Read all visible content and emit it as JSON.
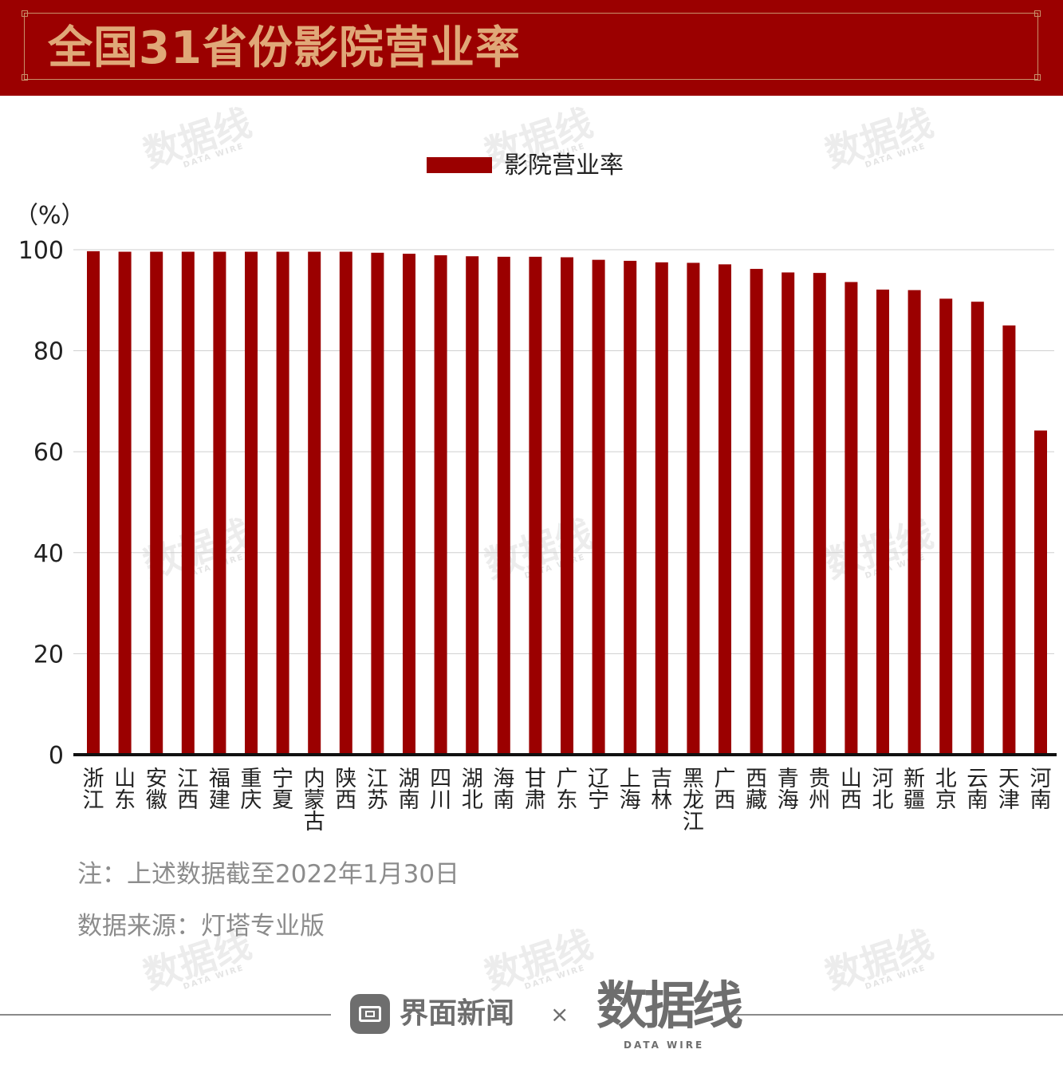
{
  "header": {
    "title": "全国31省份影院营业率"
  },
  "watermark": {
    "text": "数据线",
    "sub": "DATA WIRE"
  },
  "chart_data": {
    "type": "bar",
    "title": "全国31省份影院营业率",
    "ylabel": "（%）",
    "xlabel": "",
    "ylim": [
      0,
      100
    ],
    "yticks": [
      0,
      20,
      40,
      60,
      80,
      100
    ],
    "grid": true,
    "legend_position": "top-center",
    "categories": [
      "浙江",
      "山东",
      "安徽",
      "江西",
      "福建",
      "重庆",
      "宁夏",
      "内蒙古",
      "陕西",
      "江苏",
      "湖南",
      "四川",
      "湖北",
      "海南",
      "甘肃",
      "广东",
      "辽宁",
      "上海",
      "吉林",
      "黑龙江",
      "广西",
      "西藏",
      "青海",
      "贵州",
      "山西",
      "河北",
      "新疆",
      "北京",
      "云南",
      "天津",
      "河南"
    ],
    "series": [
      {
        "name": "影院营业率",
        "color": "#9b0000",
        "values": [
          99.7,
          99.6,
          99.6,
          99.6,
          99.6,
          99.6,
          99.6,
          99.6,
          99.6,
          99.4,
          99.2,
          98.9,
          98.7,
          98.6,
          98.6,
          98.5,
          98.0,
          97.8,
          97.5,
          97.4,
          97.1,
          96.2,
          95.5,
          95.4,
          93.6,
          92.1,
          92.0,
          90.3,
          89.7,
          85.0,
          64.2
        ]
      }
    ]
  },
  "notes": {
    "note": "注：上述数据截至2022年1月30日",
    "source": "数据来源：灯塔专业版"
  },
  "footer": {
    "brand": "界面新闻",
    "separator": "×",
    "partner": "数据线",
    "partner_sub": "DATA WIRE"
  },
  "colors": {
    "banner": "#9b0000",
    "title": "#e0a878",
    "bar": "#9b0000"
  }
}
